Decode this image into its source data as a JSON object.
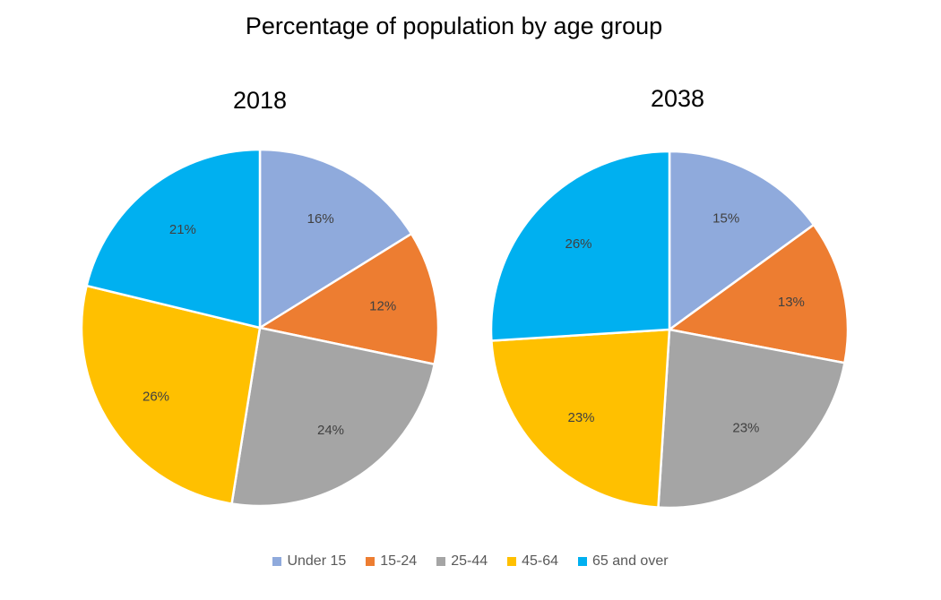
{
  "chart_data": {
    "type": "pie",
    "title": "Percentage of population by age group",
    "categories": [
      "Under 15",
      "15-24",
      "25-44",
      "45-64",
      "65 and over"
    ],
    "colors": [
      "#8faadc",
      "#ed7d31",
      "#a5a5a5",
      "#ffc000",
      "#00b0f0"
    ],
    "legend_position": "bottom",
    "pies": [
      {
        "title": "2018",
        "values": [
          16,
          12,
          24,
          26,
          21
        ],
        "labels": [
          "16%",
          "12%",
          "24%",
          "26%",
          "21%"
        ]
      },
      {
        "title": "2038",
        "values": [
          15,
          13,
          23,
          23,
          26
        ],
        "labels": [
          "15%",
          "13%",
          "23%",
          "23%",
          "26%"
        ]
      }
    ]
  }
}
